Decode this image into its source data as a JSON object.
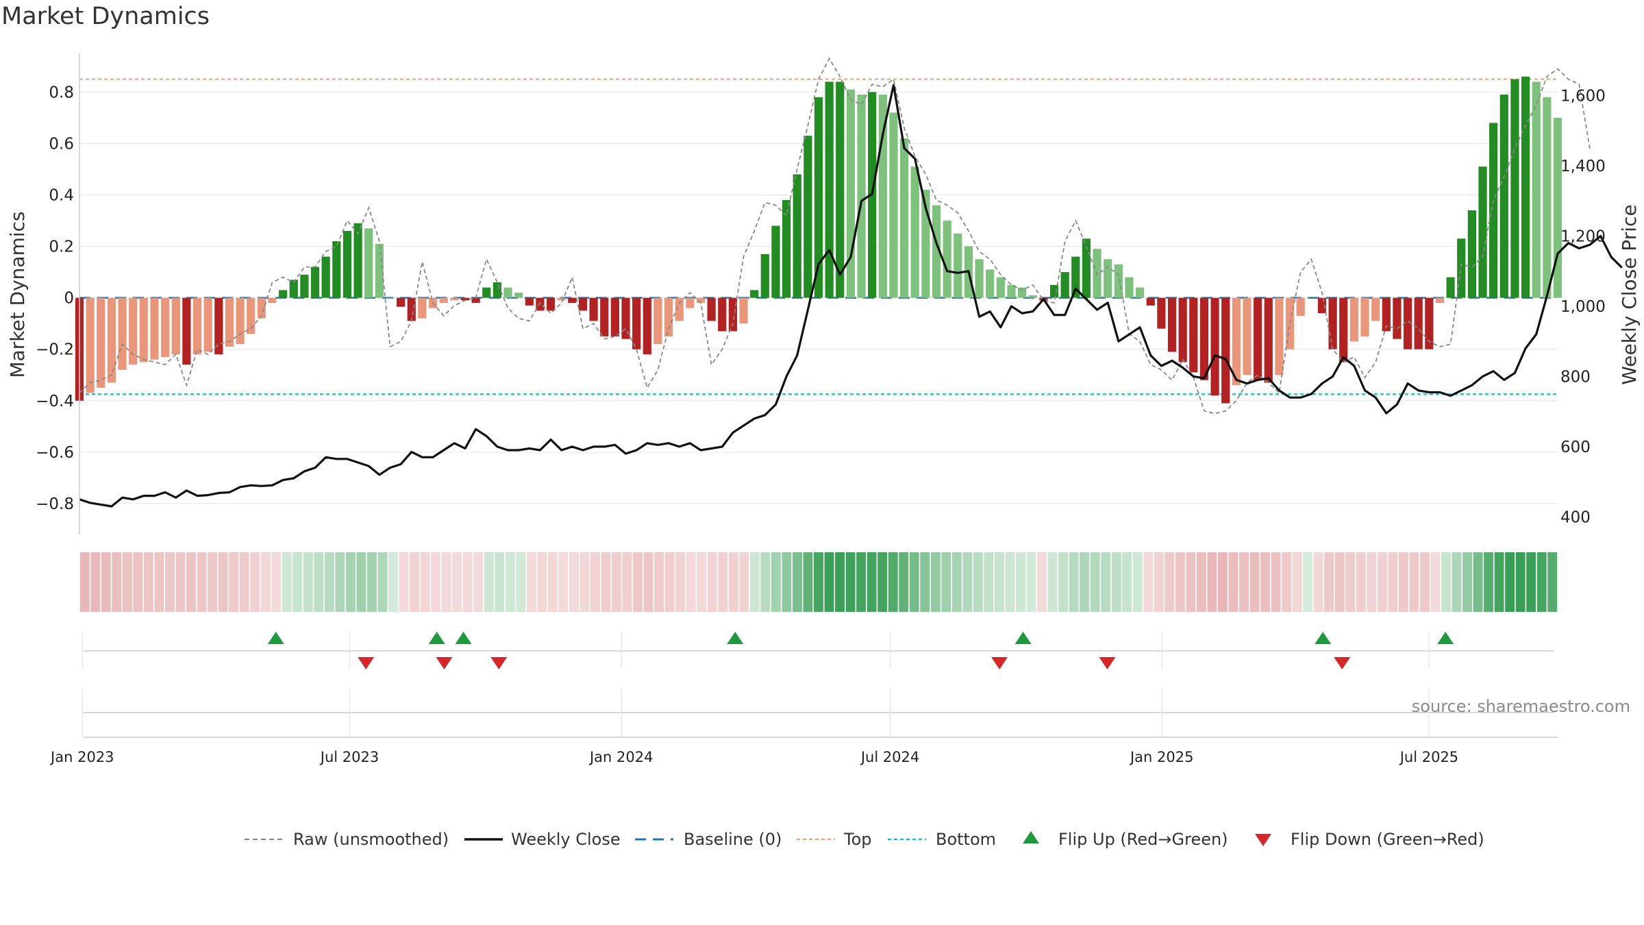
{
  "title": "Market Dynamics",
  "source": "source: sharemaestro.com",
  "colors": {
    "strong_green": "#228B22",
    "light_green": "#7DC17D",
    "strong_red": "#B22222",
    "light_red": "#E9967A",
    "close_line": "#111111",
    "raw_line": "#888888",
    "baseline": "#1f77b4",
    "top_line": "#E8A87C",
    "bottom_line": "#17BECF",
    "flip_up": "#1e9a3c",
    "flip_down": "#d62728",
    "grid": "#e6e6e6"
  },
  "chart_data": {
    "type": "bar",
    "title": "Market Dynamics",
    "ylabel": "Market Dynamics",
    "y2label": "Weekly Close Price",
    "ylim": [
      -0.92,
      0.95
    ],
    "y2lim": [
      350,
      1720
    ],
    "yticks": [
      -0.8,
      -0.6,
      -0.4,
      -0.2,
      0,
      0.2,
      0.4,
      0.6,
      0.8
    ],
    "yticklabels": [
      "−0.8",
      "−0.6",
      "−0.4",
      "−0.2",
      "0",
      "0.2",
      "0.4",
      "0.6",
      "0.8"
    ],
    "y2ticks": [
      400,
      600,
      800,
      1000,
      1200,
      1400,
      1600
    ],
    "y2ticklabels": [
      "400",
      "600",
      "800",
      "1,000",
      "1,200",
      "1,400",
      "1,600"
    ],
    "x_start": "2022-12-30",
    "x_end": "2025-09-26",
    "x_ticks": [
      "2023-01-01",
      "2023-07-01",
      "2024-01-01",
      "2024-07-01",
      "2025-01-01",
      "2025-07-01"
    ],
    "x_ticklabels": [
      "Jan 2023",
      "Jul 2023",
      "Jan 2024",
      "Jul 2024",
      "Jan 2025",
      "Jul 2025"
    ],
    "top_level": 0.85,
    "bottom_level": -0.375,
    "baseline_level": 0,
    "grid": true,
    "legend_position": "bottom",
    "legend": [
      "Raw (unsmoothed)",
      "Weekly Close",
      "Baseline (0)",
      "Top",
      "Bottom",
      "Flip Up (Red→Green)",
      "Flip Down (Green→Red)"
    ],
    "dynamics": [
      -0.4,
      -0.37,
      -0.35,
      -0.33,
      -0.28,
      -0.26,
      -0.25,
      -0.24,
      -0.23,
      -0.22,
      -0.26,
      -0.22,
      -0.21,
      -0.22,
      -0.19,
      -0.18,
      -0.14,
      -0.08,
      -0.02,
      0.03,
      0.07,
      0.09,
      0.12,
      0.16,
      0.22,
      0.26,
      0.29,
      0.27,
      0.21,
      0,
      -0.035,
      -0.09,
      -0.08,
      -0.04,
      -0.02,
      -0.01,
      -0.01,
      -0.02,
      0.04,
      0.06,
      0.04,
      0.02,
      -0.03,
      -0.05,
      -0.05,
      -0.01,
      -0.02,
      -0.05,
      -0.09,
      -0.15,
      -0.15,
      -0.16,
      -0.2,
      -0.22,
      -0.18,
      -0.15,
      -0.09,
      -0.04,
      -0.02,
      -0.09,
      -0.13,
      -0.13,
      -0.1,
      0.03,
      0.17,
      0.28,
      0.38,
      0.48,
      0.63,
      0.78,
      0.84,
      0.84,
      0.81,
      0.79,
      0.8,
      0.79,
      0.72,
      0.62,
      0.51,
      0.42,
      0.36,
      0.3,
      0.25,
      0.2,
      0.15,
      0.11,
      0.08,
      0.05,
      0.04,
      0.01,
      -0.01,
      0.05,
      0.1,
      0.16,
      0.23,
      0.19,
      0.15,
      0.13,
      0.08,
      0.04,
      -0.03,
      -0.12,
      -0.21,
      -0.25,
      -0.29,
      -0.32,
      -0.38,
      -0.41,
      -0.34,
      -0.3,
      -0.32,
      -0.33,
      -0.3,
      -0.2,
      -0.07,
      0,
      -0.06,
      -0.2,
      -0.25,
      -0.17,
      -0.15,
      -0.09,
      -0.13,
      -0.16,
      -0.2,
      -0.2,
      -0.2,
      -0.02,
      0.08,
      0.23,
      0.34,
      0.51,
      0.68,
      0.79,
      0.85,
      0.86,
      0.84,
      0.78,
      0.7
    ],
    "weekly_close": [
      450,
      440,
      435,
      430,
      455,
      450,
      460,
      460,
      470,
      455,
      475,
      460,
      462,
      468,
      470,
      485,
      490,
      488,
      490,
      505,
      510,
      530,
      540,
      570,
      565,
      565,
      555,
      545,
      520,
      540,
      550,
      585,
      570,
      570,
      590,
      610,
      595,
      650,
      630,
      600,
      590,
      590,
      595,
      590,
      620,
      590,
      600,
      590,
      600,
      600,
      605,
      580,
      590,
      610,
      605,
      610,
      600,
      610,
      590,
      595,
      600,
      640,
      660,
      680,
      690,
      720,
      800,
      860,
      990,
      1120,
      1160,
      1090,
      1140,
      1300,
      1320,
      1490,
      1630,
      1450,
      1420,
      1280,
      1180,
      1100,
      1095,
      1100,
      970,
      985,
      940,
      1000,
      980,
      985,
      1020,
      975,
      975,
      1050,
      1020,
      990,
      1010,
      900,
      920,
      940,
      860,
      830,
      845,
      825,
      800,
      795,
      860,
      850,
      790,
      780,
      790,
      795,
      760,
      740,
      740,
      750,
      780,
      800,
      855,
      830,
      760,
      740,
      695,
      720,
      780,
      760,
      755,
      755,
      745,
      760,
      775,
      800,
      815,
      790,
      810,
      880,
      920,
      1030,
      1150,
      1180,
      1165,
      1175,
      1200,
      1140,
      1110
    ],
    "raw": [
      -0.37,
      -0.33,
      -0.32,
      -0.3,
      -0.18,
      -0.22,
      -0.24,
      -0.25,
      -0.26,
      -0.22,
      -0.34,
      -0.2,
      -0.22,
      -0.18,
      -0.17,
      -0.14,
      -0.12,
      -0.07,
      0.06,
      0.08,
      0.06,
      0.12,
      0.12,
      0.18,
      0.2,
      0.3,
      0.25,
      0.35,
      0.22,
      -0.19,
      -0.17,
      -0.09,
      0.14,
      -0.02,
      -0.07,
      -0.03,
      -0.01,
      0,
      0.15,
      0.06,
      -0.04,
      -0.08,
      -0.09,
      -0.02,
      -0.06,
      -0.02,
      0.08,
      -0.12,
      -0.1,
      -0.16,
      -0.15,
      -0.12,
      -0.2,
      -0.35,
      -0.28,
      -0.12,
      -0.02,
      0.02,
      -0.02,
      -0.26,
      -0.2,
      -0.1,
      0.16,
      0.26,
      0.37,
      0.36,
      0.32,
      0.5,
      0.67,
      0.85,
      0.93,
      0.86,
      0.77,
      0.75,
      0.83,
      0.82,
      0.85,
      0.66,
      0.55,
      0.48,
      0.38,
      0.36,
      0.33,
      0.26,
      0.18,
      0.15,
      0.09,
      0.05,
      0.03,
      0.05,
      -0.01,
      -0.02,
      0.22,
      0.3,
      0.2,
      0.09,
      0.12,
      0.09,
      -0.14,
      -0.17,
      -0.26,
      -0.28,
      -0.32,
      -0.24,
      -0.31,
      -0.44,
      -0.45,
      -0.44,
      -0.4,
      -0.33,
      -0.3,
      -0.33,
      -0.37,
      -0.1,
      0.1,
      0.15,
      0.02,
      -0.2,
      -0.25,
      -0.23,
      -0.31,
      -0.25,
      -0.11,
      -0.12,
      -0.09,
      -0.12,
      -0.17,
      -0.19,
      -0.18,
      0.13,
      0.12,
      0.16,
      0.38,
      0.47,
      0.58,
      0.67,
      0.75,
      0.86,
      0.89,
      0.85,
      0.83,
      0.58
    ],
    "flip_up_dates": [
      "2023-05-12",
      "2023-08-29",
      "2023-09-16",
      "2024-03-18",
      "2024-09-29",
      "2025-04-20",
      "2025-07-12"
    ],
    "flip_down_dates": [
      "2023-07-12",
      "2023-09-03",
      "2023-10-10",
      "2024-09-13",
      "2024-11-25",
      "2025-05-03"
    ]
  }
}
